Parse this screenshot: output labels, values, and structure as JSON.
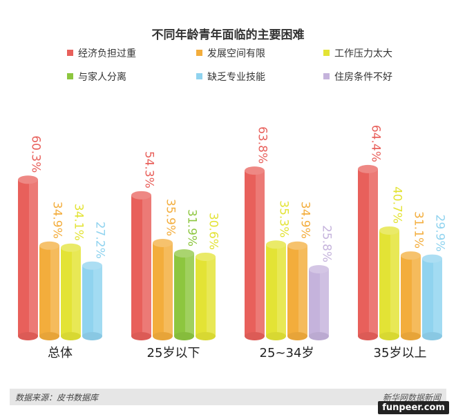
{
  "chart_data": {
    "type": "bar",
    "title": "不同年龄青年面临的主要困难",
    "categories": [
      "总体",
      "25岁以下",
      "25~34岁",
      "35岁以上"
    ],
    "series": [
      {
        "name": "经济负担过重",
        "color": "#e8605b",
        "values": [
          60.3,
          54.3,
          63.8,
          64.4
        ]
      },
      {
        "name": "发展空间有限",
        "color": "#f3ad3c",
        "values": [
          34.9,
          35.9,
          34.9,
          31.1
        ]
      },
      {
        "name": "工作压力太大",
        "color": "#e3e335",
        "values": [
          34.1,
          30.6,
          35.3,
          40.7
        ]
      },
      {
        "name": "与家人分离",
        "color": "#8dc63f",
        "values": [
          null,
          31.9,
          null,
          null
        ]
      },
      {
        "name": "缺乏专业技能",
        "color": "#90d3ef",
        "values": [
          27.2,
          null,
          null,
          29.9
        ]
      },
      {
        "name": "住房条件不好",
        "color": "#c5b3dc",
        "values": [
          null,
          null,
          25.8,
          null
        ]
      }
    ],
    "groups": [
      [
        {
          "s": 0,
          "label": "60.3%"
        },
        {
          "s": 1,
          "label": "34.9%"
        },
        {
          "s": 2,
          "label": "34.1%"
        },
        {
          "s": 4,
          "label": "27.2%"
        }
      ],
      [
        {
          "s": 0,
          "label": "54.3%"
        },
        {
          "s": 1,
          "label": "35.9%"
        },
        {
          "s": 3,
          "label": "31.9%"
        },
        {
          "s": 2,
          "label": "30.6%"
        }
      ],
      [
        {
          "s": 0,
          "label": "63.8%"
        },
        {
          "s": 2,
          "label": "35.3%"
        },
        {
          "s": 1,
          "label": "34.9%"
        },
        {
          "s": 5,
          "label": "25.8%"
        }
      ],
      [
        {
          "s": 0,
          "label": "64.4%"
        },
        {
          "s": 2,
          "label": "40.7%"
        },
        {
          "s": 1,
          "label": "31.1%"
        },
        {
          "s": 4,
          "label": "29.9%"
        }
      ]
    ],
    "ylim": [
      0,
      70
    ],
    "legend_position": "top"
  },
  "footer": {
    "source": "数据来源：皮书数据库",
    "brand": "新华网数据新闻"
  },
  "watermark": "funpeer.com"
}
